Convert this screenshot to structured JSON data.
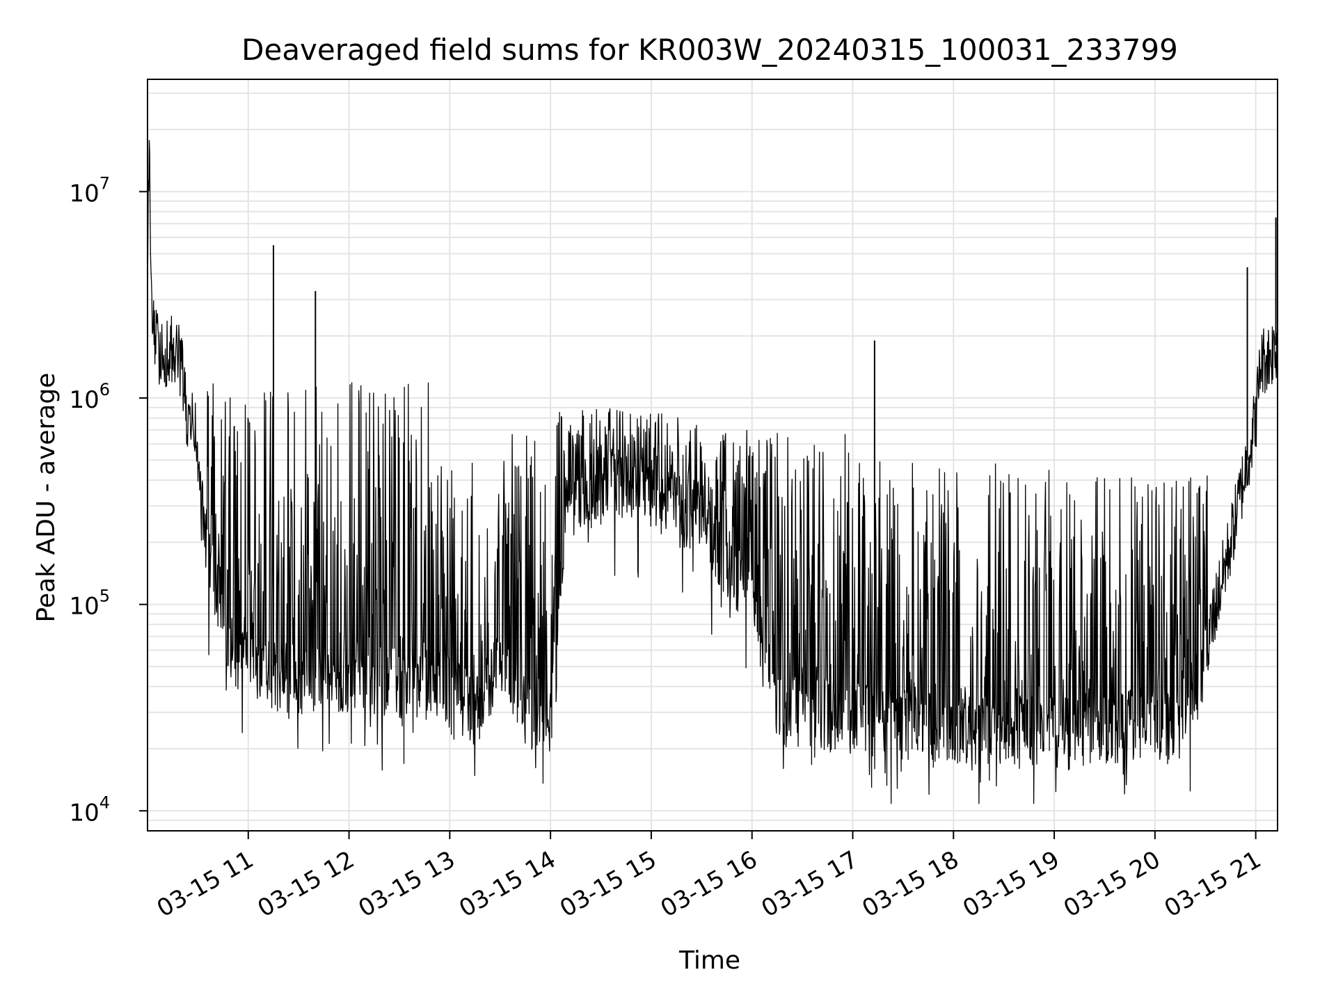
{
  "chart_data": {
    "type": "line",
    "title": "Deaveraged field sums for KR003W_20240315_100031_233799",
    "xlabel": "Time",
    "ylabel": "Peak ADU - average",
    "yscale": "log",
    "grid": true,
    "grid_minor": true,
    "line_color": "#000000",
    "xlim": [
      "03-15 10:00",
      "03-15 21:13"
    ],
    "ylim": [
      8000,
      35000000
    ],
    "xticks": [
      "03-15 11",
      "03-15 12",
      "03-15 13",
      "03-15 14",
      "03-15 15",
      "03-15 16",
      "03-15 17",
      "03-15 18",
      "03-15 19",
      "03-15 20",
      "03-15 21"
    ],
    "yticks": [
      {
        "value": 10000,
        "base": "10",
        "exp": "4"
      },
      {
        "value": 100000,
        "base": "10",
        "exp": "5"
      },
      {
        "value": 1000000,
        "base": "10",
        "exp": "6"
      },
      {
        "value": 10000000,
        "base": "10",
        "exp": "7"
      }
    ],
    "series": [
      {
        "points": [
          [
            "03-15 10:00",
            2500000
          ],
          [
            "03-15 10:01",
            25000000
          ],
          [
            "03-15 10:02",
            3000000
          ],
          [
            "03-15 10:05",
            1800000
          ],
          [
            "03-15 10:10",
            1600000
          ],
          [
            "03-15 10:15",
            1700000
          ],
          [
            "03-15 10:20",
            1500000
          ],
          [
            "03-15 10:24",
            700000
          ],
          [
            "03-15 10:28",
            750000
          ],
          [
            "03-15 10:32",
            300000
          ],
          [
            "03-15 10:36",
            180000
          ],
          [
            "03-15 10:42",
            120000
          ],
          [
            "03-15 10:48",
            70000
          ],
          [
            "03-15 10:55",
            55000
          ],
          [
            "03-15 11:00",
            50000
          ],
          [
            "03-15 11:15",
            45000
          ],
          [
            "03-15 11:30",
            42000
          ],
          [
            "03-15 11:45",
            45000
          ],
          [
            "03-15 12:00",
            45000
          ],
          [
            "03-15 12:30",
            42000
          ],
          [
            "03-15 13:00",
            40000
          ],
          [
            "03-15 13:15",
            30000
          ],
          [
            "03-15 13:30",
            50000
          ],
          [
            "03-15 13:45",
            30000
          ],
          [
            "03-15 14:00",
            28000
          ],
          [
            "03-15 14:10",
            300000
          ],
          [
            "03-15 14:30",
            400000
          ],
          [
            "03-15 15:00",
            350000
          ],
          [
            "03-15 15:30",
            250000
          ],
          [
            "03-15 16:00",
            100000
          ],
          [
            "03-15 16:15",
            30000
          ],
          [
            "03-15 16:30",
            30000
          ],
          [
            "03-15 17:00",
            28000
          ],
          [
            "03-15 17:30",
            26000
          ],
          [
            "03-15 18:00",
            25000
          ],
          [
            "03-15 18:30",
            25000
          ],
          [
            "03-15 19:00",
            24000
          ],
          [
            "03-15 19:30",
            25000
          ],
          [
            "03-15 20:00",
            27000
          ],
          [
            "03-15 20:15",
            28000
          ],
          [
            "03-15 20:25",
            40000
          ],
          [
            "03-15 20:35",
            90000
          ],
          [
            "03-15 20:45",
            200000
          ],
          [
            "03-15 20:55",
            500000
          ],
          [
            "03-15 21:00",
            800000
          ],
          [
            "03-15 21:03",
            1500000
          ],
          [
            "03-15 21:08",
            1600000
          ],
          [
            "03-15 21:12",
            1800000
          ]
        ],
        "spikes": [
          [
            "03-15 11:15",
            5500000
          ],
          [
            "03-15 11:40",
            3300000
          ],
          [
            "03-15 17:13",
            1900000
          ],
          [
            "03-15 20:55",
            4300000
          ],
          [
            "03-15 21:12",
            7500000
          ]
        ]
      }
    ]
  }
}
